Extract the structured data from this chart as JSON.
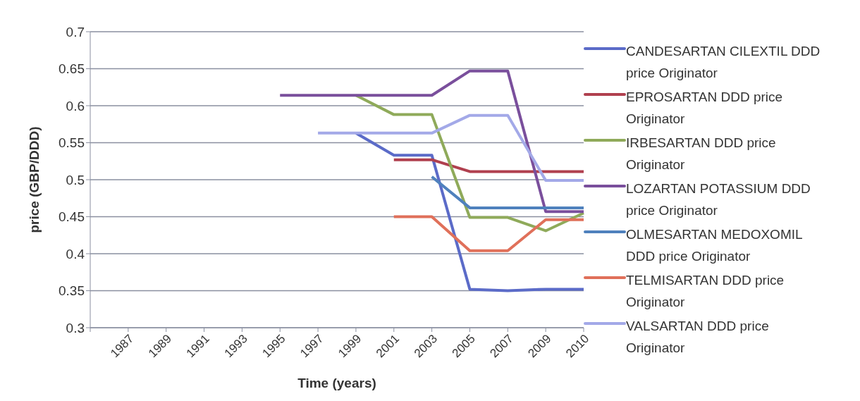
{
  "chart_data": {
    "type": "line",
    "xlabel": "Time (years)",
    "ylabel": "price (GBP/DDD)",
    "categories": [
      null,
      "1987",
      "1989",
      "1991",
      "1993",
      "1995",
      "1997",
      "1999",
      "2001",
      "2003",
      "2005",
      "2007",
      "2009",
      "2010"
    ],
    "series": [
      {
        "name": "CANDESARTAN CILEXTIL DDD price Originator",
        "color": "#5b6bc8",
        "values": [
          null,
          null,
          null,
          null,
          null,
          null,
          null,
          0.563,
          0.533,
          0.533,
          0.352,
          0.35,
          0.352,
          0.352
        ]
      },
      {
        "name": "EPROSARTAN DDD price Originator",
        "color": "#b0404f",
        "values": [
          null,
          null,
          null,
          null,
          null,
          null,
          null,
          null,
          0.527,
          0.527,
          0.511,
          0.511,
          0.511,
          0.511
        ]
      },
      {
        "name": "IRBESARTAN DDD price Originator",
        "color": "#8faa5a",
        "values": [
          null,
          null,
          null,
          null,
          null,
          null,
          null,
          0.614,
          0.588,
          0.588,
          0.449,
          0.449,
          0.431,
          0.455
        ]
      },
      {
        "name": "LOZARTAN POTASSIUM DDD price Originator",
        "color": "#7a4f9c",
        "values": [
          null,
          null,
          null,
          null,
          null,
          0.614,
          0.614,
          0.614,
          0.614,
          0.614,
          0.647,
          0.647,
          0.457,
          0.457
        ]
      },
      {
        "name": "OLMESARTAN MEDOXOMIL DDD price Originator",
        "color": "#4f81bd",
        "values": [
          null,
          null,
          null,
          null,
          null,
          null,
          null,
          null,
          null,
          0.504,
          0.462,
          0.462,
          0.462,
          0.462
        ]
      },
      {
        "name": "TELMISARTAN DDD price Originator",
        "color": "#e0705a",
        "values": [
          null,
          null,
          null,
          null,
          null,
          null,
          null,
          null,
          0.45,
          0.45,
          0.404,
          0.404,
          0.446,
          0.446
        ]
      },
      {
        "name": "VALSARTAN DDD price Originator",
        "color": "#a3a9e8",
        "values": [
          null,
          null,
          null,
          null,
          null,
          null,
          0.563,
          0.563,
          0.563,
          0.563,
          0.587,
          0.587,
          0.499,
          0.499
        ]
      }
    ],
    "ylim": [
      0.3,
      0.7
    ],
    "yticks": [
      0.3,
      0.35,
      0.4,
      0.45,
      0.5,
      0.55,
      0.6,
      0.65,
      0.7
    ],
    "grid": "y",
    "legend": "right"
  }
}
